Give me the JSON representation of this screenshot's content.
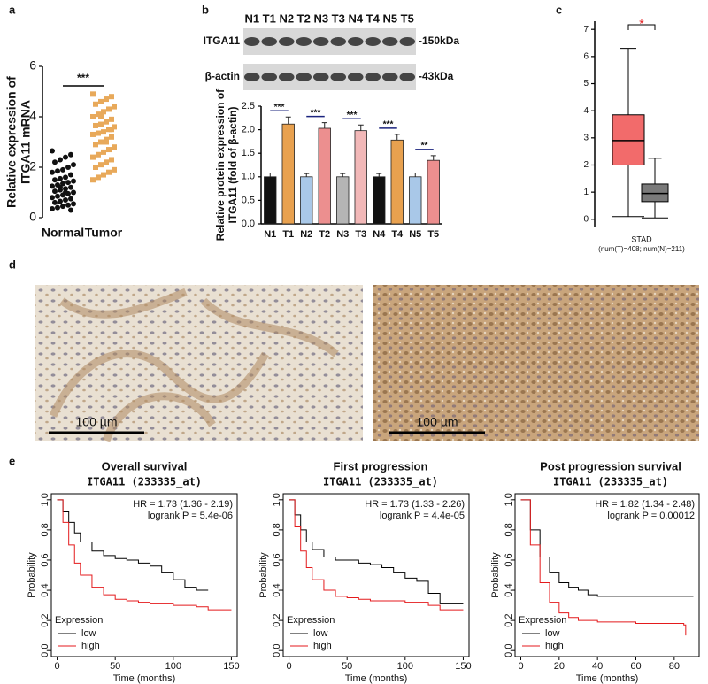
{
  "chart_data": [
    {
      "type": "strip",
      "panel": "a",
      "ylabel": [
        "Relative expression of",
        "ITGA11 mRNA"
      ],
      "categories": [
        "Normal",
        "Tumor"
      ],
      "colors": [
        "#111111",
        "#e8a95a"
      ],
      "values": [
        [
          2.65,
          2.5,
          2.4,
          2.3,
          2.2,
          2.1,
          2.0,
          1.9,
          1.85,
          1.8,
          1.7,
          1.6,
          1.55,
          1.5,
          1.45,
          1.4,
          1.35,
          1.3,
          1.25,
          1.2,
          1.15,
          1.1,
          1.05,
          1.0,
          0.95,
          0.9,
          0.85,
          0.8,
          0.75,
          0.7,
          0.65,
          0.6,
          0.55,
          0.5,
          0.45,
          0.4,
          0.35,
          0.3,
          1.0,
          1.2
        ],
        [
          4.9,
          4.8,
          4.7,
          4.6,
          4.5,
          4.4,
          4.3,
          4.2,
          4.1,
          4.0,
          3.9,
          3.8,
          3.7,
          3.65,
          3.6,
          3.5,
          3.4,
          3.35,
          3.3,
          3.2,
          3.1,
          3.0,
          2.9,
          2.8,
          2.7,
          2.6,
          2.5,
          2.4,
          2.3,
          2.2,
          2.1,
          2.0,
          1.9,
          1.8,
          1.7,
          1.6,
          1.5,
          3.5,
          3.0,
          4.0
        ]
      ],
      "significance": "***",
      "ylim": [
        0,
        6
      ],
      "yticks": [
        0,
        2,
        4,
        6
      ]
    },
    {
      "type": "bar",
      "panel": "b",
      "blot": {
        "lanes": [
          "N1",
          "T1",
          "N2",
          "T2",
          "N3",
          "T3",
          "N4",
          "T4",
          "N5",
          "T5"
        ],
        "rows": [
          {
            "name": "ITGA11",
            "size": "-150kDa"
          },
          {
            "name": "β-actin",
            "size": "-43kDa"
          }
        ]
      },
      "ylabel": [
        "Relative protein expression of",
        "ITGA11 (fold of β-actin)"
      ],
      "categories": [
        "N1",
        "T1",
        "N2",
        "T2",
        "N3",
        "T3",
        "N4",
        "T4",
        "N5",
        "T5"
      ],
      "values": [
        1,
        2.12,
        1,
        2.03,
        1,
        1.98,
        1,
        1.78,
        1,
        1.35
      ],
      "errors": [
        0.08,
        0.15,
        0.07,
        0.12,
        0.07,
        0.12,
        0.07,
        0.12,
        0.08,
        0.1
      ],
      "colors": [
        "#111111",
        "#e8a14f",
        "#a9c8e8",
        "#ec8f8f",
        "#b5b5b5",
        "#f2b8b8",
        "#111111",
        "#e8a14f",
        "#a9c8e8",
        "#ec8f8f"
      ],
      "significance": [
        "***",
        "***",
        "***",
        "***",
        "**"
      ],
      "ylim": [
        0,
        2.5
      ],
      "yticks": [
        {
          "value": 0,
          "label": "0.0"
        },
        0.5,
        {
          "value": 1,
          "label": "1.0"
        },
        1.5,
        {
          "value": 2,
          "label": "2.0"
        },
        2.5
      ]
    },
    {
      "type": "box",
      "panel": "c",
      "xlabel": "STAD",
      "note": "(num(T)=408; num(N)=211)",
      "significance": "*",
      "series": [
        {
          "color": "#f26b6b",
          "whislo": 0.1,
          "q1": 2.0,
          "median": 2.9,
          "q3": 3.85,
          "whishi": 6.3
        },
        {
          "color": "#7a7a7a",
          "whislo": 0.05,
          "q1": 0.65,
          "median": 0.95,
          "q3": 1.3,
          "whishi": 2.25
        }
      ],
      "ylim": [
        -0.3,
        7.3
      ],
      "yticks": [
        0,
        1,
        2,
        3,
        4,
        5,
        6,
        7
      ]
    },
    {
      "type": "image",
      "panel": "d",
      "scale_bars": [
        "100 µm",
        "100 µm"
      ]
    },
    {
      "type": "km",
      "panel": "e",
      "title": "Overall survival",
      "subtitle": "ITGA11 (233335_at)",
      "hr": "HR = 1.73 (1.36 - 2.19)",
      "logrank": "logrank P = 5.4e-06",
      "xlabel": "Time (months)",
      "ylabel": "Probability",
      "legend_title": "Expression",
      "series": [
        {
          "name": "low",
          "color": "#000000",
          "x": [
            0,
            5,
            10,
            15,
            20,
            30,
            40,
            50,
            60,
            70,
            80,
            90,
            100,
            110,
            120,
            130
          ],
          "y": [
            1,
            0.92,
            0.85,
            0.78,
            0.72,
            0.66,
            0.63,
            0.61,
            0.6,
            0.58,
            0.56,
            0.52,
            0.47,
            0.42,
            0.4,
            0.4
          ]
        },
        {
          "name": "high",
          "color": "#e41a1c",
          "x": [
            0,
            5,
            10,
            15,
            20,
            30,
            40,
            50,
            60,
            70,
            80,
            100,
            120,
            130,
            150
          ],
          "y": [
            1,
            0.85,
            0.7,
            0.58,
            0.5,
            0.42,
            0.37,
            0.34,
            0.33,
            0.32,
            0.31,
            0.3,
            0.29,
            0.27,
            0.27
          ]
        }
      ],
      "xlim": [
        -5,
        155
      ],
      "xticks": [
        0,
        50,
        100,
        150
      ],
      "ylim": [
        -0.04,
        1.04
      ],
      "yticks": [
        {
          "value": 0,
          "label": "0.0"
        },
        0.2,
        0.4,
        0.6,
        0.8,
        {
          "value": 1,
          "label": "1.0"
        }
      ]
    },
    {
      "type": "km",
      "title": "First progression",
      "subtitle": "ITGA11 (233335_at)",
      "hr": "HR = 1.73 (1.33 - 2.26)",
      "logrank": "logrank P = 4.4e-05",
      "xlabel": "Time (months)",
      "ylabel": "Probability",
      "legend_title": "Expression",
      "series": [
        {
          "name": "low",
          "color": "#000000",
          "x": [
            0,
            5,
            10,
            15,
            20,
            30,
            40,
            50,
            60,
            70,
            80,
            90,
            100,
            110,
            120,
            130,
            150
          ],
          "y": [
            1,
            0.9,
            0.8,
            0.72,
            0.67,
            0.62,
            0.6,
            0.6,
            0.58,
            0.57,
            0.55,
            0.52,
            0.48,
            0.46,
            0.38,
            0.31,
            0.31
          ]
        },
        {
          "name": "high",
          "color": "#e41a1c",
          "x": [
            0,
            5,
            10,
            15,
            20,
            30,
            40,
            50,
            60,
            70,
            80,
            100,
            120,
            130,
            150
          ],
          "y": [
            1,
            0.82,
            0.66,
            0.55,
            0.47,
            0.4,
            0.36,
            0.35,
            0.34,
            0.33,
            0.33,
            0.32,
            0.3,
            0.27,
            0.27
          ]
        }
      ],
      "xlim": [
        -5,
        155
      ],
      "xticks": [
        0,
        50,
        100,
        150
      ],
      "ylim": [
        -0.04,
        1.04
      ],
      "yticks": [
        {
          "value": 0,
          "label": "0.0"
        },
        0.2,
        0.4,
        0.6,
        0.8,
        {
          "value": 1,
          "label": "1.0"
        }
      ]
    },
    {
      "type": "km",
      "title": "Post progression survival",
      "subtitle": "ITGA11 (233335_at)",
      "hr": "HR = 1.82 (1.34 - 2.48)",
      "logrank": "logrank P = 0.00012",
      "xlabel": "Time (months)",
      "ylabel": "Probability",
      "legend_title": "Expression",
      "series": [
        {
          "name": "low",
          "color": "#000000",
          "x": [
            0,
            5,
            10,
            15,
            20,
            25,
            30,
            35,
            40,
            60,
            80,
            90
          ],
          "y": [
            1,
            0.8,
            0.62,
            0.52,
            0.45,
            0.42,
            0.4,
            0.37,
            0.36,
            0.36,
            0.36,
            0.36
          ]
        },
        {
          "name": "high",
          "color": "#e41a1c",
          "x": [
            0,
            5,
            10,
            15,
            20,
            25,
            30,
            40,
            60,
            80,
            85,
            86
          ],
          "y": [
            1,
            0.7,
            0.45,
            0.32,
            0.25,
            0.22,
            0.2,
            0.19,
            0.18,
            0.18,
            0.17,
            0.1
          ]
        }
      ],
      "xlim": [
        -3,
        93
      ],
      "xticks": [
        0,
        20,
        40,
        60,
        80
      ],
      "ylim": [
        -0.04,
        1.04
      ],
      "yticks": [
        {
          "value": 0,
          "label": "0.0"
        },
        0.2,
        0.4,
        0.6,
        0.8,
        {
          "value": 1,
          "label": "1.0"
        }
      ]
    }
  ]
}
